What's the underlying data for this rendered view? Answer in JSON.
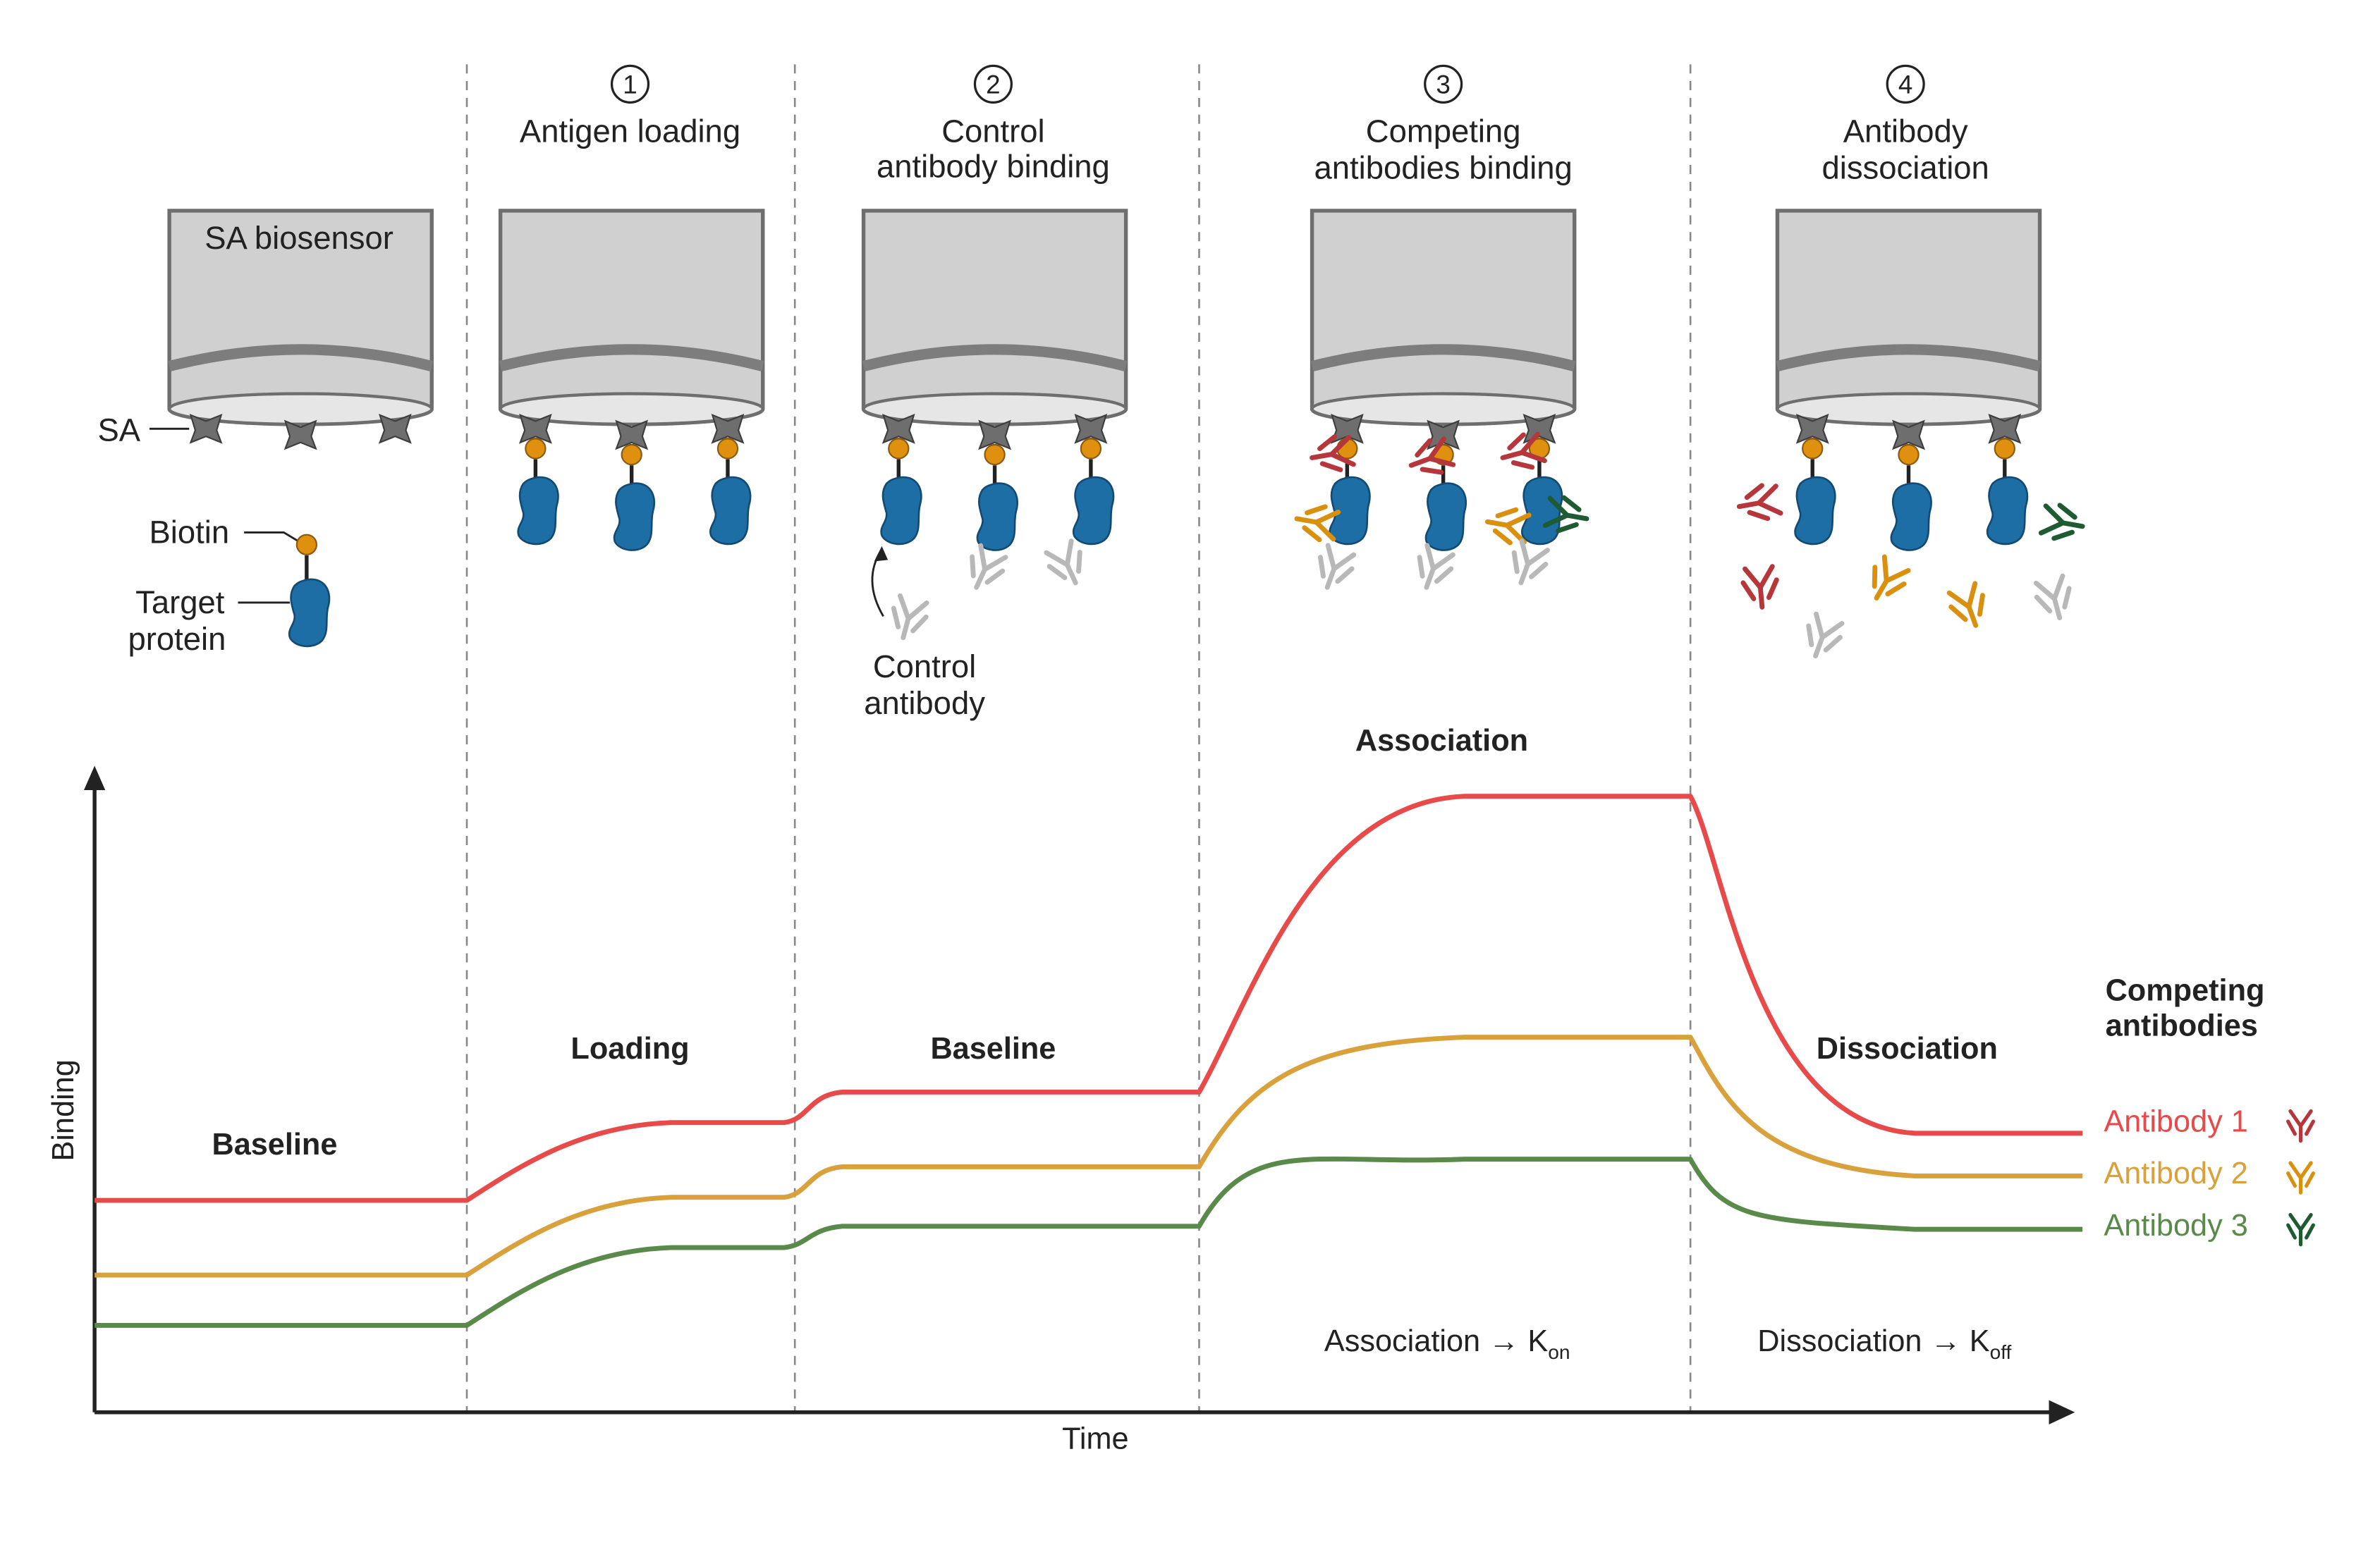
{
  "steps": [
    {
      "number": "1",
      "title_lines": [
        "Antigen loading"
      ]
    },
    {
      "number": "2",
      "title_lines": [
        "Control",
        "antibody binding"
      ]
    },
    {
      "number": "3",
      "title_lines": [
        "Competing",
        "antibodies binding"
      ]
    },
    {
      "number": "4",
      "title_lines": [
        "Antibody",
        "dissociation"
      ]
    }
  ],
  "labels": {
    "sa_biosensor": "SA biosensor",
    "sa": "SA",
    "biotin": "Biotin",
    "target_protein_lines": [
      "Target",
      "protein"
    ],
    "control_antibody_lines": [
      "Control",
      "antibody"
    ]
  },
  "plot": {
    "y_axis_label": "Binding",
    "x_axis_label": "Time",
    "phase_labels": [
      "Baseline",
      "Loading",
      "Baseline",
      "Association",
      "Dissociation"
    ],
    "association_note": {
      "main": "Association → K",
      "sub": "on"
    },
    "dissociation_note": {
      "main": "Dissociation → K",
      "sub": "off"
    }
  },
  "legend": {
    "title_lines": [
      "Competing",
      "antibodies"
    ],
    "items": [
      {
        "label": "Antibody 1",
        "color": "#e84a4a"
      },
      {
        "label": "Antibody 2",
        "color": "#d9a13c"
      },
      {
        "label": "Antibody 3",
        "color": "#5a8a4a"
      }
    ]
  },
  "colors": {
    "antibody1": "#e84a4a",
    "antibody2": "#d9a13c",
    "antibody3": "#5a8a4a",
    "ab1_icon": "#b5373b",
    "ab2_icon": "#d9900f",
    "ab3_icon": "#1e5a32",
    "control_ab": "#b8b8b8",
    "protein": "#1e6ea6",
    "biotin": "#e0900f",
    "sensor": "#d0d0d0",
    "sa": "#6e6e6e"
  }
}
